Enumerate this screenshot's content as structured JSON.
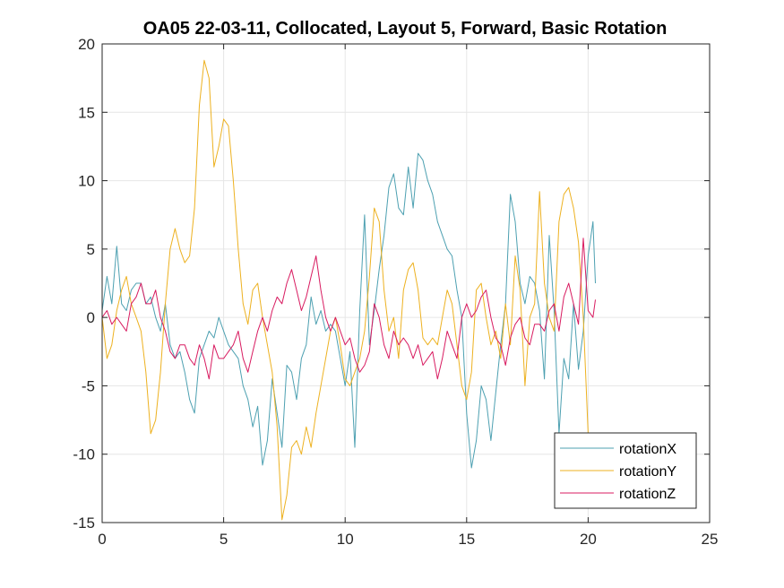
{
  "chart_data": {
    "type": "line",
    "title": "OA05 22-03-11, Collocated, Layout 5, Forward, Basic Rotation",
    "xlabel": "",
    "ylabel": "",
    "xlim": [
      0,
      25
    ],
    "ylim": [
      -15,
      20
    ],
    "xticks": [
      0,
      5,
      10,
      15,
      20,
      25
    ],
    "yticks": [
      -15,
      -10,
      -5,
      0,
      5,
      10,
      15,
      20
    ],
    "grid": true,
    "legend_position": "bottom-right",
    "series": [
      {
        "name": "rotationX",
        "color": "#4DA0B1",
        "x": [
          0,
          0.2,
          0.4,
          0.6,
          0.8,
          1.0,
          1.2,
          1.4,
          1.6,
          1.8,
          2.0,
          2.2,
          2.4,
          2.6,
          2.8,
          3.0,
          3.2,
          3.4,
          3.6,
          3.8,
          4.0,
          4.2,
          4.4,
          4.6,
          4.8,
          5.0,
          5.2,
          5.4,
          5.6,
          5.8,
          6.0,
          6.2,
          6.4,
          6.6,
          6.8,
          7.0,
          7.2,
          7.4,
          7.6,
          7.8,
          8.0,
          8.2,
          8.4,
          8.6,
          8.8,
          9.0,
          9.2,
          9.4,
          9.6,
          9.8,
          10.0,
          10.2,
          10.4,
          10.6,
          10.8,
          11.0,
          11.2,
          11.4,
          11.6,
          11.8,
          12.0,
          12.2,
          12.4,
          12.6,
          12.8,
          13.0,
          13.2,
          13.4,
          13.6,
          13.8,
          14.0,
          14.2,
          14.4,
          14.6,
          14.8,
          15.0,
          15.2,
          15.4,
          15.6,
          15.8,
          16.0,
          16.2,
          16.4,
          16.6,
          16.8,
          17.0,
          17.2,
          17.4,
          17.6,
          17.8,
          18.0,
          18.2,
          18.4,
          18.6,
          18.8,
          19.0,
          19.2,
          19.4,
          19.6,
          19.8,
          20.0,
          20.2,
          20.3
        ],
        "y": [
          0.5,
          3.0,
          1.0,
          5.2,
          1.0,
          0.5,
          2.0,
          2.5,
          2.5,
          1.0,
          1.5,
          0.0,
          -1.0,
          1.0,
          -2.0,
          -3.0,
          -2.5,
          -4.0,
          -6.0,
          -7.0,
          -3.0,
          -2.0,
          -1.0,
          -1.5,
          0.0,
          -1.0,
          -2.0,
          -2.5,
          -3.0,
          -5.0,
          -6.0,
          -8.0,
          -6.5,
          -10.8,
          -9.0,
          -4.5,
          -7.0,
          -9.5,
          -3.5,
          -4.0,
          -6.0,
          -3.0,
          -2.0,
          1.5,
          -0.5,
          0.5,
          -1.0,
          -0.5,
          -1.0,
          -3.0,
          -5.0,
          -2.5,
          -9.5,
          0.5,
          7.5,
          -2.0,
          0.5,
          3.5,
          6.0,
          9.5,
          10.5,
          8.0,
          7.5,
          11.0,
          8.0,
          12.0,
          11.5,
          10.0,
          9.0,
          7.0,
          6.0,
          5.0,
          4.5,
          2.0,
          0.0,
          -7.0,
          -11.0,
          -9.0,
          -5.0,
          -6.0,
          -9.0,
          -5.5,
          -2.0,
          1.0,
          9.0,
          7.0,
          2.5,
          1.0,
          3.0,
          2.5,
          0.5,
          -4.5,
          6.0,
          0.5,
          -8.5,
          -3.0,
          -4.5,
          1.0,
          -3.8,
          -1.0,
          4.5,
          7.0,
          2.5
        ]
      },
      {
        "name": "rotationY",
        "color": "#EDB120",
        "x": [
          0,
          0.2,
          0.4,
          0.6,
          0.8,
          1.0,
          1.2,
          1.4,
          1.6,
          1.8,
          2.0,
          2.2,
          2.4,
          2.6,
          2.8,
          3.0,
          3.2,
          3.4,
          3.6,
          3.8,
          4.0,
          4.2,
          4.4,
          4.6,
          4.8,
          5.0,
          5.2,
          5.4,
          5.6,
          5.8,
          6.0,
          6.2,
          6.4,
          6.6,
          6.8,
          7.0,
          7.2,
          7.4,
          7.6,
          7.8,
          8.0,
          8.2,
          8.4,
          8.6,
          8.8,
          9.0,
          9.2,
          9.4,
          9.6,
          9.8,
          10.0,
          10.2,
          10.4,
          10.6,
          10.8,
          11.0,
          11.2,
          11.4,
          11.6,
          11.8,
          12.0,
          12.2,
          12.4,
          12.6,
          12.8,
          13.0,
          13.2,
          13.4,
          13.6,
          13.8,
          14.0,
          14.2,
          14.4,
          14.6,
          14.8,
          15.0,
          15.2,
          15.4,
          15.6,
          15.8,
          16.0,
          16.2,
          16.4,
          16.6,
          16.8,
          17.0,
          17.2,
          17.4,
          17.6,
          17.8,
          18.0,
          18.2,
          18.4,
          18.6,
          18.8,
          19.0,
          19.2,
          19.4,
          19.6,
          19.8,
          20.0
        ],
        "y": [
          0.0,
          -3.0,
          -2.0,
          0.5,
          2.0,
          3.0,
          1.0,
          0.0,
          -1.0,
          -4.0,
          -8.5,
          -7.5,
          -4.0,
          1.0,
          5.0,
          6.5,
          5.0,
          4.0,
          4.5,
          8.0,
          15.5,
          18.8,
          17.5,
          11.0,
          12.5,
          14.5,
          14.0,
          10.0,
          5.0,
          1.0,
          -0.5,
          2.0,
          2.5,
          0.0,
          -2.0,
          -4.0,
          -8.0,
          -14.8,
          -13.0,
          -9.5,
          -9.0,
          -10.0,
          -8.0,
          -9.5,
          -7.0,
          -5.0,
          -3.0,
          -1.0,
          0.0,
          -2.0,
          -4.5,
          -5.0,
          -4.0,
          -3.0,
          -1.0,
          3.0,
          8.0,
          7.0,
          2.0,
          -1.0,
          0.0,
          -3.0,
          2.0,
          3.5,
          4.0,
          2.0,
          -1.5,
          -2.0,
          -1.5,
          -2.0,
          0.0,
          2.0,
          1.0,
          -2.0,
          -5.0,
          -6.0,
          -4.0,
          2.0,
          2.5,
          0.0,
          -2.0,
          -1.0,
          -3.0,
          1.0,
          -2.0,
          4.5,
          2.0,
          -5.0,
          0.0,
          1.0,
          9.2,
          2.5,
          0.0,
          -1.0,
          7.0,
          9.0,
          9.5,
          8.0,
          5.5,
          0.0,
          -8.5
        ]
      },
      {
        "name": "rotationZ",
        "color": "#D81B60",
        "x": [
          0,
          0.2,
          0.4,
          0.6,
          0.8,
          1.0,
          1.2,
          1.4,
          1.6,
          1.8,
          2.0,
          2.2,
          2.4,
          2.6,
          2.8,
          3.0,
          3.2,
          3.4,
          3.6,
          3.8,
          4.0,
          4.2,
          4.4,
          4.6,
          4.8,
          5.0,
          5.2,
          5.4,
          5.6,
          5.8,
          6.0,
          6.2,
          6.4,
          6.6,
          6.8,
          7.0,
          7.2,
          7.4,
          7.6,
          7.8,
          8.0,
          8.2,
          8.4,
          8.6,
          8.8,
          9.0,
          9.2,
          9.4,
          9.6,
          9.8,
          10.0,
          10.2,
          10.4,
          10.6,
          10.8,
          11.0,
          11.2,
          11.4,
          11.6,
          11.8,
          12.0,
          12.2,
          12.4,
          12.6,
          12.8,
          13.0,
          13.2,
          13.4,
          13.6,
          13.8,
          14.0,
          14.2,
          14.4,
          14.6,
          14.8,
          15.0,
          15.2,
          15.4,
          15.6,
          15.8,
          16.0,
          16.2,
          16.4,
          16.6,
          16.8,
          17.0,
          17.2,
          17.4,
          17.6,
          17.8,
          18.0,
          18.2,
          18.4,
          18.6,
          18.8,
          19.0,
          19.2,
          19.4,
          19.6,
          19.8,
          20.0,
          20.2,
          20.3
        ],
        "y": [
          0.0,
          0.5,
          -0.5,
          0.0,
          -0.5,
          -1.0,
          1.0,
          1.5,
          2.5,
          1.0,
          1.0,
          2.0,
          0.0,
          -1.0,
          -2.5,
          -3.0,
          -2.0,
          -2.0,
          -3.0,
          -3.5,
          -2.0,
          -3.0,
          -4.5,
          -2.0,
          -3.0,
          -3.0,
          -2.5,
          -2.0,
          -1.0,
          -3.0,
          -4.0,
          -2.5,
          -1.0,
          0.0,
          -1.0,
          0.5,
          1.5,
          1.0,
          2.5,
          3.5,
          2.0,
          0.5,
          1.5,
          3.0,
          4.5,
          2.0,
          0.0,
          -1.0,
          0.0,
          -1.0,
          -2.0,
          -1.5,
          -3.0,
          -4.0,
          -3.5,
          -2.5,
          1.0,
          0.0,
          -2.0,
          -3.0,
          -1.0,
          -2.0,
          -1.5,
          -2.0,
          -3.0,
          -2.0,
          -3.5,
          -3.0,
          -2.5,
          -4.5,
          -3.0,
          -1.0,
          -2.0,
          -3.0,
          0.0,
          1.0,
          0.0,
          0.5,
          1.5,
          2.0,
          0.0,
          -1.5,
          -2.0,
          -3.5,
          -1.5,
          -0.5,
          0.0,
          -1.5,
          -2.0,
          -0.5,
          -0.5,
          -1.0,
          0.5,
          1.0,
          -1.0,
          1.5,
          2.5,
          1.0,
          -0.5,
          5.8,
          0.5,
          0.0,
          1.3
        ]
      }
    ]
  }
}
